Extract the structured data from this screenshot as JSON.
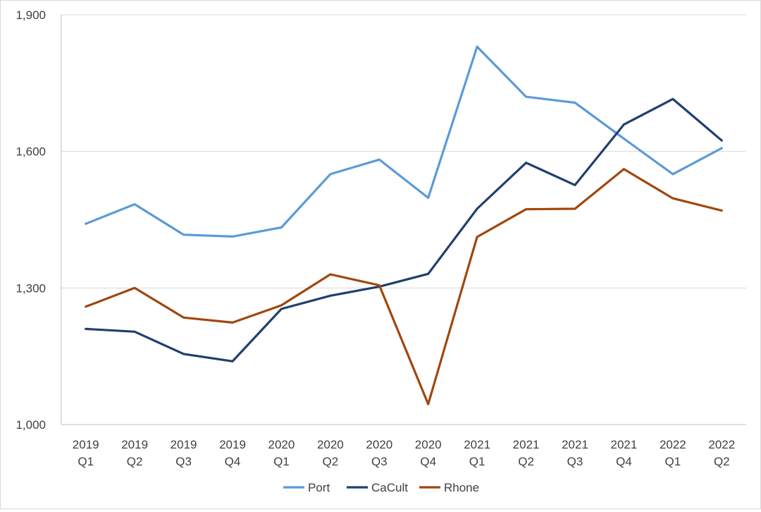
{
  "chart_data": {
    "type": "line",
    "title": "",
    "xlabel": "",
    "ylabel": "",
    "categories": [
      [
        "2019",
        "Q1"
      ],
      [
        "2019",
        "Q2"
      ],
      [
        "2019",
        "Q3"
      ],
      [
        "2019",
        "Q4"
      ],
      [
        "2020",
        "Q1"
      ],
      [
        "2020",
        "Q2"
      ],
      [
        "2020",
        "Q3"
      ],
      [
        "2020",
        "Q4"
      ],
      [
        "2021",
        "Q1"
      ],
      [
        "2021",
        "Q2"
      ],
      [
        "2021",
        "Q3"
      ],
      [
        "2021",
        "Q4"
      ],
      [
        "2022",
        "Q1"
      ],
      [
        "2022",
        "Q2"
      ]
    ],
    "ylim": [
      1000,
      1900
    ],
    "yticks": [
      1000,
      1300,
      1600,
      1900
    ],
    "ytick_labels": [
      "1,000",
      "1,300",
      "1,600",
      "1,900"
    ],
    "grid": true,
    "legend_position": "bottom",
    "series": [
      {
        "name": "Port",
        "color": "#5b9bd5",
        "values": [
          1441,
          1484,
          1417,
          1413,
          1433,
          1550,
          1582,
          1498,
          1830,
          1720,
          1707,
          1628,
          1550,
          1607
        ]
      },
      {
        "name": "CaCult",
        "color": "#203f6e",
        "values": [
          1210,
          1204,
          1155,
          1139,
          1254,
          1283,
          1303,
          1331,
          1474,
          1575,
          1526,
          1659,
          1715,
          1624
        ]
      },
      {
        "name": "Rhone",
        "color": "#a0470f",
        "values": [
          1259,
          1300,
          1235,
          1224,
          1262,
          1330,
          1306,
          1045,
          1412,
          1473,
          1474,
          1561,
          1497,
          1470
        ]
      }
    ]
  }
}
